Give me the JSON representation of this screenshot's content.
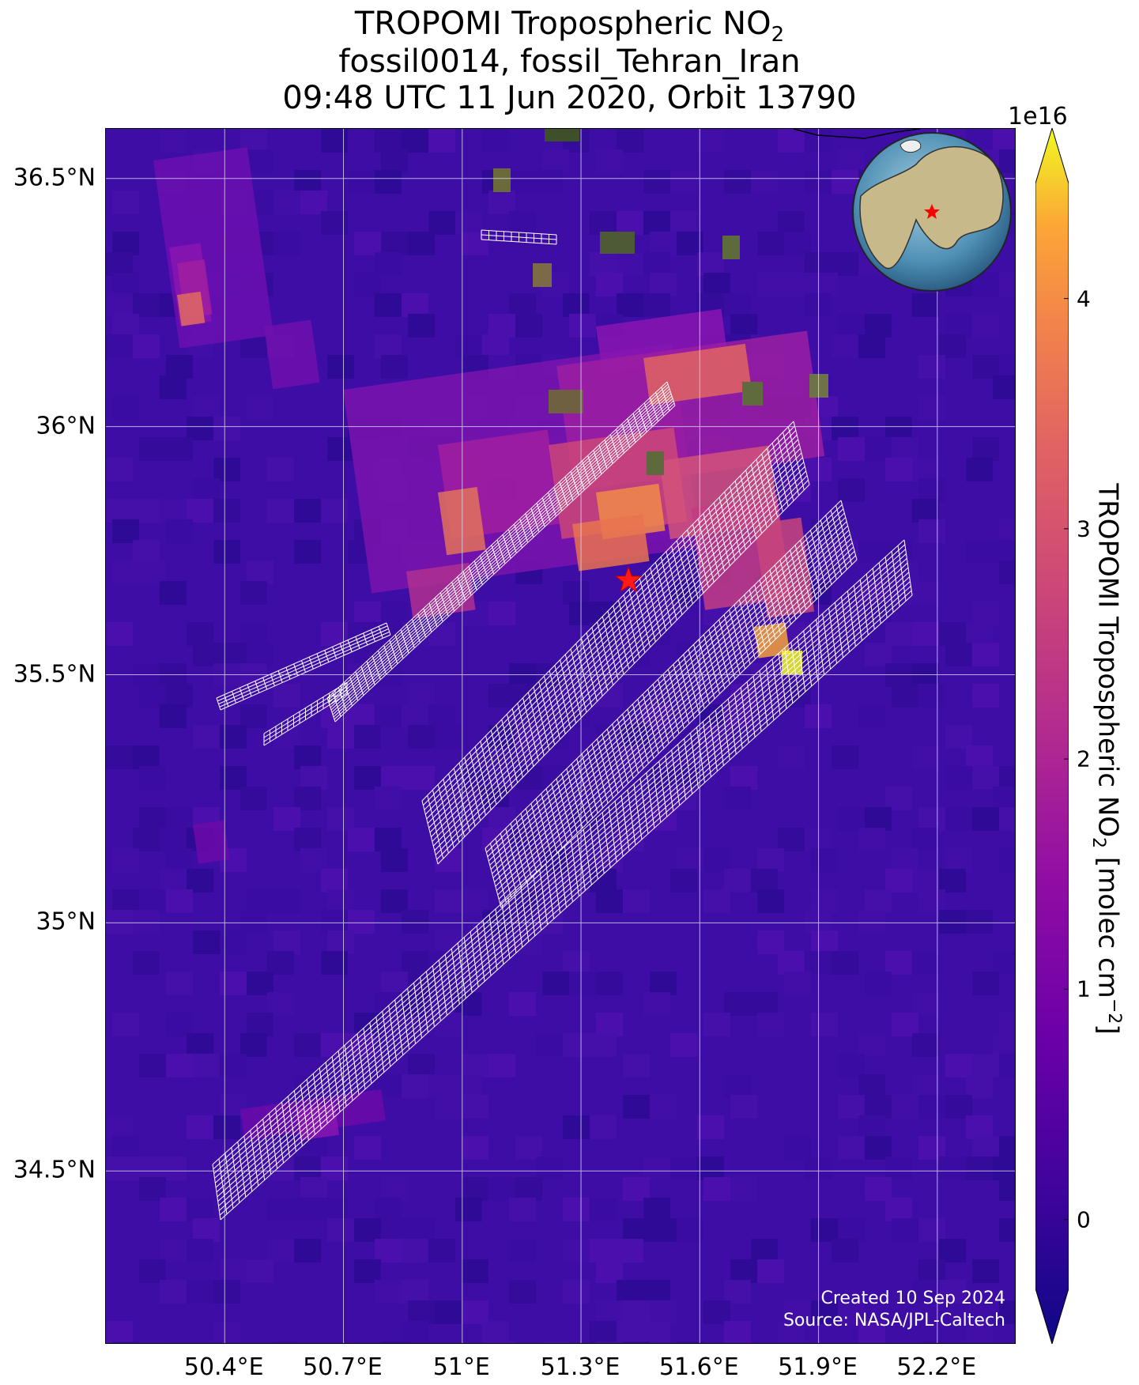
{
  "title": {
    "line1_prefix": "TROPOMI Tropospheric NO",
    "line1_sub": "2",
    "line2": "fossil0014, fossil_Tehran_Iran",
    "line3": "09:48 UTC 11 Jun 2020, Orbit 13790"
  },
  "map": {
    "lon_range": [
      50.1,
      52.4
    ],
    "lat_range": [
      34.15,
      36.6
    ],
    "lat_labels": [
      "36.5°N",
      "36°N",
      "35.5°N",
      "35°N",
      "34.5°N"
    ],
    "lat_values": [
      36.5,
      36.0,
      35.5,
      35.0,
      34.5
    ],
    "lon_labels": [
      "50.4°E",
      "50.7°E",
      "51°E",
      "51.3°E",
      "51.6°E",
      "51.9°E",
      "52.2°E"
    ],
    "lon_values": [
      50.4,
      50.7,
      51.0,
      51.3,
      51.6,
      51.9,
      52.2
    ],
    "grid": true,
    "target_marker": {
      "lon": 51.42,
      "lat": 35.69,
      "symbol": "red-star"
    },
    "background_color": "#3a0ca3"
  },
  "colorbar": {
    "exponent": "1e16",
    "ticks": [
      "4",
      "3",
      "2",
      "1",
      "0"
    ],
    "tick_values": [
      4,
      3,
      2,
      1,
      0
    ],
    "range": [
      -0.3,
      4.5
    ],
    "label_prefix": "TROPOMI Tropospheric NO",
    "label_sub": "2",
    "label_mid": " [molec cm",
    "label_sup": "−2",
    "label_suffix": "]",
    "colormap": "plasma"
  },
  "credit": {
    "line1": "Created 10 Sep 2024",
    "line2": "Source: NASA/JPL-Caltech"
  },
  "inset_globe": {
    "marker": "red-star",
    "region": "Middle East"
  }
}
